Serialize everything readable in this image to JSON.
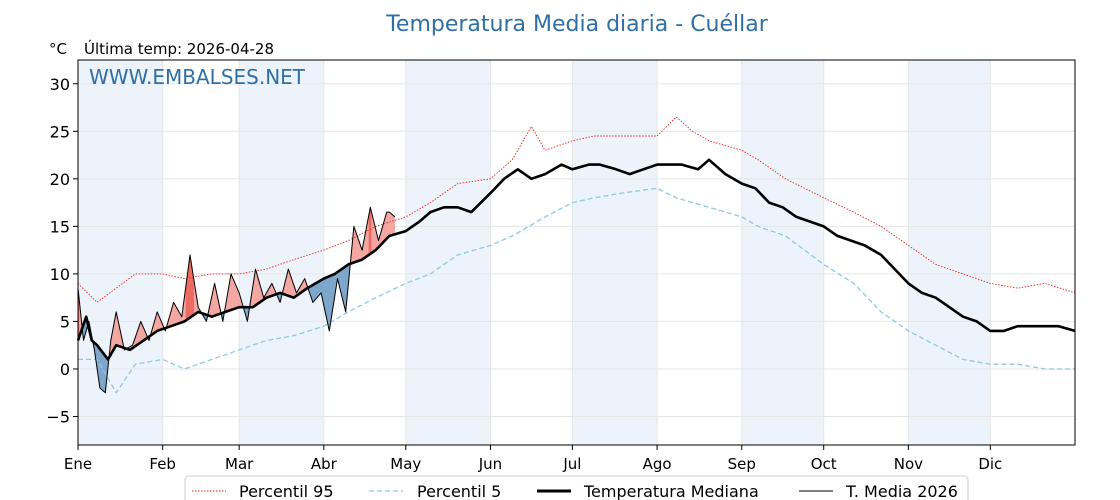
{
  "title": "Temperatura Media diaria - Cuéllar",
  "unit_label": "°C",
  "last_temp_label": "Última temp: 2026-04-28",
  "watermark": "WWW.EMBALSES.NET",
  "colors": {
    "title": "#2f6fa6",
    "p95": "#e8231c",
    "p5": "#8ec9e0",
    "median": "#000000",
    "current": "#000000",
    "above_fill": "#f4a7a2",
    "above_fill_strong": "#ee6a63",
    "below_fill": "#7ea6cc",
    "month_shade": "#dde9f5"
  },
  "chart_data": {
    "type": "line",
    "title": "Temperatura Media diaria - Cuéllar",
    "ylabel": "°C",
    "ylim": [
      -8,
      32.5
    ],
    "yticks": [
      -5,
      0,
      5,
      10,
      15,
      20,
      25,
      30
    ],
    "xlim": [
      1,
      366
    ],
    "x_unit": "day of year",
    "x_tick_days": [
      1,
      32,
      60,
      91,
      121,
      152,
      182,
      213,
      244,
      274,
      305,
      335
    ],
    "x_tick_labels": [
      "Ene",
      "Feb",
      "Mar",
      "Abr",
      "May",
      "Jun",
      "Jul",
      "Ago",
      "Sep",
      "Oct",
      "Nov",
      "Dic"
    ],
    "shaded_months": [
      1,
      3,
      5,
      7,
      9,
      11
    ],
    "grid": true,
    "legend_position": "bottom",
    "series": [
      {
        "name": "Percentil 95",
        "style": "dotted-red",
        "x": [
          1,
          8,
          15,
          22,
          32,
          40,
          50,
          60,
          70,
          80,
          91,
          100,
          110,
          121,
          130,
          140,
          152,
          160,
          167,
          172,
          182,
          190,
          200,
          213,
          220,
          226,
          232,
          244,
          250,
          260,
          274,
          285,
          295,
          305,
          315,
          325,
          335,
          345,
          355,
          366
        ],
        "y": [
          9,
          7,
          8.5,
          10,
          10,
          9.5,
          10,
          10,
          10.5,
          11.5,
          12.5,
          13.5,
          15,
          16,
          17.5,
          19.5,
          20,
          22,
          25.5,
          23,
          24,
          24.5,
          24.5,
          24.5,
          26.5,
          25,
          24,
          23,
          22,
          20,
          18,
          16.5,
          15,
          13,
          11,
          10,
          9,
          8.5,
          9,
          8
        ]
      },
      {
        "name": "Percentil 5",
        "style": "dashed-lightblue",
        "x": [
          1,
          8,
          15,
          22,
          32,
          40,
          50,
          60,
          70,
          80,
          91,
          100,
          110,
          121,
          130,
          140,
          152,
          160,
          172,
          182,
          190,
          200,
          213,
          220,
          232,
          244,
          250,
          260,
          274,
          285,
          295,
          305,
          315,
          325,
          335,
          345,
          355,
          366
        ],
        "y": [
          1,
          1,
          -2.5,
          0.5,
          1,
          0,
          1,
          2,
          3,
          3.5,
          4.5,
          6,
          7.5,
          9,
          10,
          12,
          13,
          14,
          16,
          17.5,
          18,
          18.5,
          19,
          18,
          17,
          16,
          15,
          14,
          11,
          9,
          6,
          4,
          2.5,
          1,
          0.5,
          0.5,
          0,
          0
        ]
      },
      {
        "name": "Temperatura Mediana",
        "style": "thick-black",
        "x": [
          1,
          4,
          6,
          8,
          12,
          15,
          20,
          25,
          30,
          35,
          40,
          45,
          50,
          55,
          60,
          65,
          70,
          75,
          80,
          85,
          91,
          95,
          100,
          105,
          110,
          115,
          121,
          126,
          130,
          135,
          140,
          145,
          152,
          157,
          162,
          167,
          172,
          178,
          182,
          188,
          192,
          198,
          203,
          208,
          213,
          218,
          222,
          228,
          232,
          238,
          244,
          249,
          254,
          259,
          264,
          269,
          274,
          279,
          284,
          289,
          295,
          300,
          305,
          310,
          315,
          320,
          325,
          330,
          335,
          340,
          345,
          350,
          355,
          360,
          366
        ],
        "y": [
          3,
          5.5,
          3,
          2.5,
          1,
          2.5,
          2,
          3,
          4,
          4.5,
          5,
          6,
          5.5,
          6,
          6.5,
          6.5,
          7.5,
          8,
          7.5,
          8.5,
          9.5,
          10,
          11,
          11.5,
          12.5,
          14,
          14.5,
          15.5,
          16.5,
          17,
          17,
          16.5,
          18.5,
          20,
          21,
          20,
          20.5,
          21.5,
          21,
          21.5,
          21.5,
          21,
          20.5,
          21,
          21.5,
          21.5,
          21.5,
          21,
          22,
          20.5,
          19.5,
          19,
          17.5,
          17,
          16,
          15.5,
          15,
          14,
          13.5,
          13,
          12,
          10.5,
          9,
          8,
          7.5,
          6.5,
          5.5,
          5,
          4,
          4,
          4.5,
          4.5,
          4.5,
          4.5,
          4
        ]
      },
      {
        "name": "T. Media 2026",
        "style": "thin-black",
        "x": [
          1,
          3,
          5,
          7,
          9,
          11,
          13,
          15,
          18,
          21,
          24,
          27,
          30,
          33,
          36,
          39,
          42,
          45,
          48,
          51,
          54,
          57,
          60,
          63,
          66,
          69,
          72,
          75,
          78,
          81,
          84,
          87,
          90,
          93,
          96,
          99,
          102,
          105,
          108,
          111,
          114,
          115,
          117
        ],
        "y": [
          8.5,
          3,
          5,
          2,
          -2,
          -2.5,
          3,
          6,
          2,
          2.5,
          5,
          3,
          6,
          4,
          7,
          5.5,
          12,
          6.5,
          5,
          9,
          5,
          10,
          8,
          5,
          10.5,
          7.5,
          9,
          7,
          10.5,
          8,
          9.5,
          7,
          8,
          4,
          9.5,
          6,
          15,
          12.5,
          17,
          13.5,
          16.5,
          16.5,
          16
        ]
      }
    ]
  }
}
